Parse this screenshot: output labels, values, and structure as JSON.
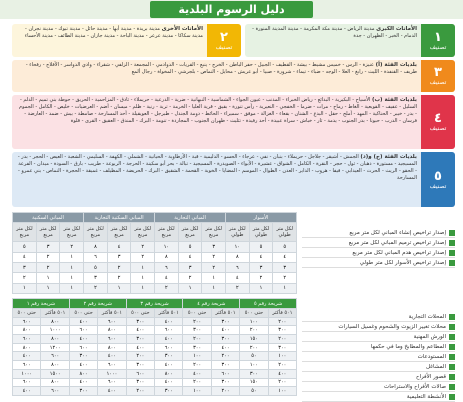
{
  "header": {
    "title": "دليل الرسوم البلدية"
  },
  "tiers": [
    {
      "num": "١",
      "label": "تصنيف",
      "title": "الأمانات الكبرى",
      "text": "مدينة الرياض - مدينة مكة المكرمة - مدينة المدينة المنورة - الدمام - الخبر - الظهران - جدة"
    },
    {
      "num": "٢",
      "label": "تصنيف",
      "title": "الأمانات الأخرى",
      "text": "مدينة بريدة - مدينة أبها - مدينة حائل - مدينة تبوك - مدينة نجران - مدينة سكاكا - مدينة عرعر - مدينة الباحة - مدينة جازان - مدينة الطائف - مدينة الأحساء"
    },
    {
      "num": "٣",
      "label": "تصنيف",
      "title": "بلديات الفئة (أ)",
      "text": "عنيزة - الرس - خميس مشيط - بيشة - القطيف - الجبيل - حفر الباطن - الخرج - ينبع - القريات - الدوادمي - المجمعة - الزلفي - شقراء - وادي الدواسر - الأفلاج - رفحاء - طريف - القنفذة - الليث - رابغ - العلا - الوجه - ضباء - تيماء - شرورة - صبيا - أبو عريش - محايل - النماص - بلجرشي - المخواة - رجال ألمع"
    },
    {
      "num": "٤",
      "label": "تصنيف",
      "title": "بلديات الفئة (ب)",
      "text": "الأسياح - البكيرية - البدائع - رياض الخبراء - المذنب - عيون الجواء - الشماسية - النبهانية - ضرية - الدرعية - حريملاء - ثادق - المزاحمية - الحريق - حوطة بني تميم - الدلم - السليل - عفيف - القويعية - الغاط - رماح - مرات - ضرما - الخفجي - النعيرية - رأس تنورة - بقيق - قرية العليا - الخرمة - تربة - رنية - ظلم - ميسان - أضم - العرضيات - خليص - الكامل - الجموم - بدر - خيبر - الحناكية - المهد - أملج - حقل - البدع - الشنان - بقعاء - الغزالة - موقق - سميراء - الحائط - دومة الجندل - طبرجل - العويقيلة - أحد المسارحة - صامطة - بيش - ضمد - العارضة - فرسان - الدرب - حبونا - بدر الجنوب - يدمة - ثار - خباش - سراة عبيدة - أحد رفيدة - تثليث - ظهران الجنوب - المجاردة - تنومة - البرك - المندق - العقيق - القرى - قلوة"
    },
    {
      "num": "٥",
      "label": "تصنيف",
      "title": "بلديات الفئة (ج) و(د)",
      "text": "الجمش - أشيقر - جلاجل - حريملاء - بنبان - نفي - عرجاء - الحسو - الدليمية - قبة - الأرطاوية - الحيانية - الشملي - الكهفة - السليمي - الشعبة - العيص - الحجر - بدر - المسيجيد - مستورة - ذهبان - ثول - حجر - النقرة - الكامل - الشواق - عشيرة - الأبواء - الصويدرة - المسيجيد - تبالة - بحر أبو سكينة - الحرجة - الربوعة - طريب - بارق - السودة - ميدان - الفرعة - الحقو - الريث - الحرث - العيدابي - فيفا - هروب - الداير - العدن - الطوال - الموسم - المضايا - الخوبة - القحمة - الشقيق - البرك - الحريضة - المظيلف - غميقة - الحجرة - النماص - بني عمرو - المسارحة"
    }
  ],
  "upper_table": {
    "groups": [
      "الأسوار",
      "المباني التجارية",
      "المباني السكنية التجارية",
      "المباني السكنية"
    ],
    "subheaders": [
      "لكل متر طولي",
      "لكل متر طولي",
      "لكل متر طولي",
      "لكل متر مربع",
      "لكل متر مربع",
      "لكل متر مربع",
      "لكل متر مربع",
      "لكل متر مربع",
      "لكل متر مربع",
      "لكل متر مربع",
      "لكل متر مربع",
      "لكل متر مربع"
    ],
    "rows": [
      [
        "٥",
        "٥",
        "١٠",
        "٣",
        "٥",
        "١٠",
        "٢",
        "٤",
        "٨",
        "٢",
        "٣",
        "٥"
      ],
      [
        "٤",
        "٤",
        "٨",
        "٢",
        "٤",
        "٨",
        "٢",
        "٣",
        "٦",
        "١",
        "٢",
        "٤"
      ],
      [
        "٣",
        "٣",
        "٦",
        "٢",
        "٣",
        "٦",
        "١",
        "٢",
        "٥",
        "١",
        "٢",
        "٣"
      ],
      [
        "٢",
        "٢",
        "٤",
        "١",
        "٢",
        "٤",
        "١",
        "٢",
        "٣",
        "١",
        "١",
        "٢"
      ],
      [
        "١",
        "١",
        "٢",
        "١",
        "١",
        "٢",
        "١",
        "١",
        "٢",
        "١",
        "١",
        "١"
      ]
    ]
  },
  "upper_list": [
    "إصدار تراخيص إنشاء المباني لكل متر مربع",
    "إصدار تراخيص ترميم المباني لكل متر مربع",
    "إصدار تراخيص هدم المباني لكل متر مربع",
    "إصدار تراخيص الأسوار لكل متر طولي"
  ],
  "lower_table": {
    "groups": [
      "شريحة رقم ٥",
      "شريحة رقم ٤",
      "شريحة رقم ٣",
      "شريحة رقم ٢",
      "شريحة رقم ١"
    ],
    "subheaders": [
      "٥٠١ فأكثر",
      "حتى ٥٠٠",
      "٥٠١ فأكثر",
      "حتى ٥٠٠",
      "٥٠١ فأكثر",
      "حتى ٥٠٠",
      "٥٠١ فأكثر",
      "حتى ٥٠٠",
      "٥٠١ فأكثر",
      "حتى ٥٠٠"
    ],
    "rows": [
      [
        "٢٠٠",
        "١٠٠",
        "٣٠٠",
        "٢٠٠",
        "٤٠٠",
        "٣٠٠",
        "٦٠٠",
        "٤٠٠",
        "٨٠٠",
        "٦٠٠"
      ],
      [
        "٣٠٠",
        "٢٠٠",
        "٤٠٠",
        "٣٠٠",
        "٦٠٠",
        "٤٠٠",
        "٨٠٠",
        "٦٠٠",
        "١٠٠٠",
        "٨٠٠"
      ],
      [
        "٢٠٠",
        "١٥٠",
        "٣٠٠",
        "٢٠٠",
        "٤٠٠",
        "٣٠٠",
        "٦٠٠",
        "٤٠٠",
        "٨٠٠",
        "٦٠٠"
      ],
      [
        "٣٠٠",
        "٢٠٠",
        "٤٠٠",
        "٣٠٠",
        "٦٠٠",
        "٤٠٠",
        "٨٠٠",
        "٦٠٠",
        "١٢٠٠",
        "٨٠٠"
      ],
      [
        "١٠٠",
        "٥٠",
        "٢٠٠",
        "١٠٠",
        "٣٠٠",
        "٢٠٠",
        "٤٠٠",
        "٣٠٠",
        "٦٠٠",
        "٤٠٠"
      ],
      [
        "٢٠٠",
        "١٠٠",
        "٣٠٠",
        "٢٠٠",
        "٤٠٠",
        "٣٠٠",
        "٦٠٠",
        "٤٠٠",
        "٨٠٠",
        "٦٠٠"
      ],
      [
        "٤٠٠",
        "٣٠٠",
        "٦٠٠",
        "٤٠٠",
        "٨٠٠",
        "٦٠٠",
        "١٠٠٠",
        "٨٠٠",
        "١٥٠٠",
        "١٠٠٠"
      ],
      [
        "٢٠٠",
        "١٥٠",
        "٣٠٠",
        "٢٠٠",
        "٤٠٠",
        "٣٠٠",
        "٦٠٠",
        "٤٠٠",
        "٨٠٠",
        "٦٠٠"
      ],
      [
        "١٠٠",
        "٥٠",
        "٢٠٠",
        "١٠٠",
        "٣٠٠",
        "٢٠٠",
        "٤٠٠",
        "٣٠٠",
        "٦٠٠",
        "٤٠٠"
      ]
    ]
  },
  "lower_list": [
    "المحلات التجارية",
    "محلات تغيير الزيوت والشحوم وغسيل السيارات",
    "الورش المهنية",
    "المطاعم والمطابخ وما في حكمها",
    "المستودعات",
    "المشاغل",
    "قصور الأفراح",
    "صالات الأفراح والاستراحات",
    "الأنشطة التعليمية"
  ]
}
